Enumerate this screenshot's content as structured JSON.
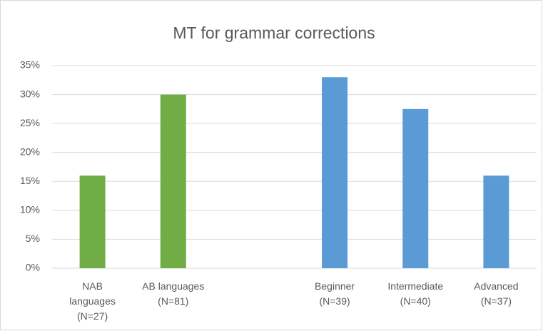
{
  "chart_data": {
    "type": "bar",
    "title": "MT for grammar corrections",
    "categories": [
      "NAB\nlanguages\n(N=27)",
      "AB languages\n(N=81)",
      null,
      "Beginner\n(N=39)",
      "Intermediate\n(N=40)",
      "Advanced\n(N=37)"
    ],
    "values": [
      16,
      30,
      null,
      33,
      27.5,
      16
    ],
    "colors": [
      "#70ad47",
      "#70ad47",
      null,
      "#5b9bd5",
      "#5b9bd5",
      "#5b9bd5"
    ],
    "ylim": [
      0,
      35
    ],
    "yticks": [
      {
        "value": 0,
        "label": "0%"
      },
      {
        "value": 5,
        "label": "5%"
      },
      {
        "value": 10,
        "label": "10%"
      },
      {
        "value": 15,
        "label": "15%"
      },
      {
        "value": 20,
        "label": "20%"
      },
      {
        "value": 25,
        "label": "25%"
      },
      {
        "value": 30,
        "label": "30%"
      },
      {
        "value": 35,
        "label": "35%"
      }
    ],
    "grid": true
  }
}
